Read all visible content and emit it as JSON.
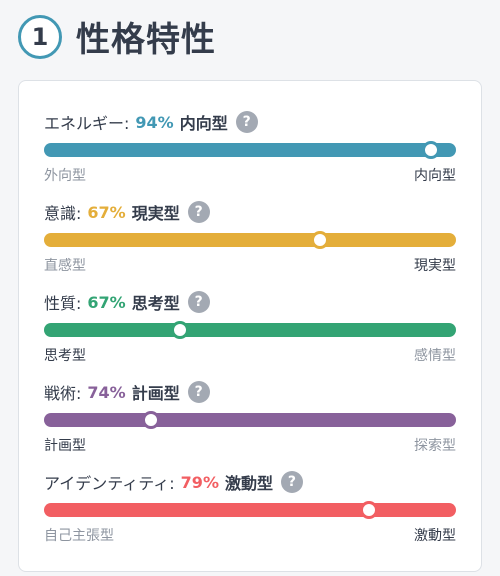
{
  "header": {
    "number": "1",
    "title": "性格特性"
  },
  "traits": [
    {
      "name": "エネルギー:",
      "percent": "94%",
      "type": "内向型",
      "left": "外向型",
      "right": "内向型",
      "active": "right",
      "value_pct": 94,
      "color": "#4298b4",
      "help": "?"
    },
    {
      "name": "意識:",
      "percent": "67%",
      "type": "現実型",
      "left": "直感型",
      "right": "現実型",
      "active": "right",
      "value_pct": 67,
      "color": "#e4ae3a",
      "help": "?"
    },
    {
      "name": "性質:",
      "percent": "67%",
      "type": "思考型",
      "left": "思考型",
      "right": "感情型",
      "active": "left",
      "value_pct": 67,
      "color": "#33a474",
      "help": "?"
    },
    {
      "name": "戦術:",
      "percent": "74%",
      "type": "計画型",
      "left": "計画型",
      "right": "探索型",
      "active": "left",
      "value_pct": 74,
      "color": "#88619a",
      "help": "?"
    },
    {
      "name": "アイデンティティ:",
      "percent": "79%",
      "type": "激動型",
      "left": "自己主張型",
      "right": "激動型",
      "active": "right",
      "value_pct": 79,
      "color": "#f25e62",
      "help": "?"
    }
  ]
}
